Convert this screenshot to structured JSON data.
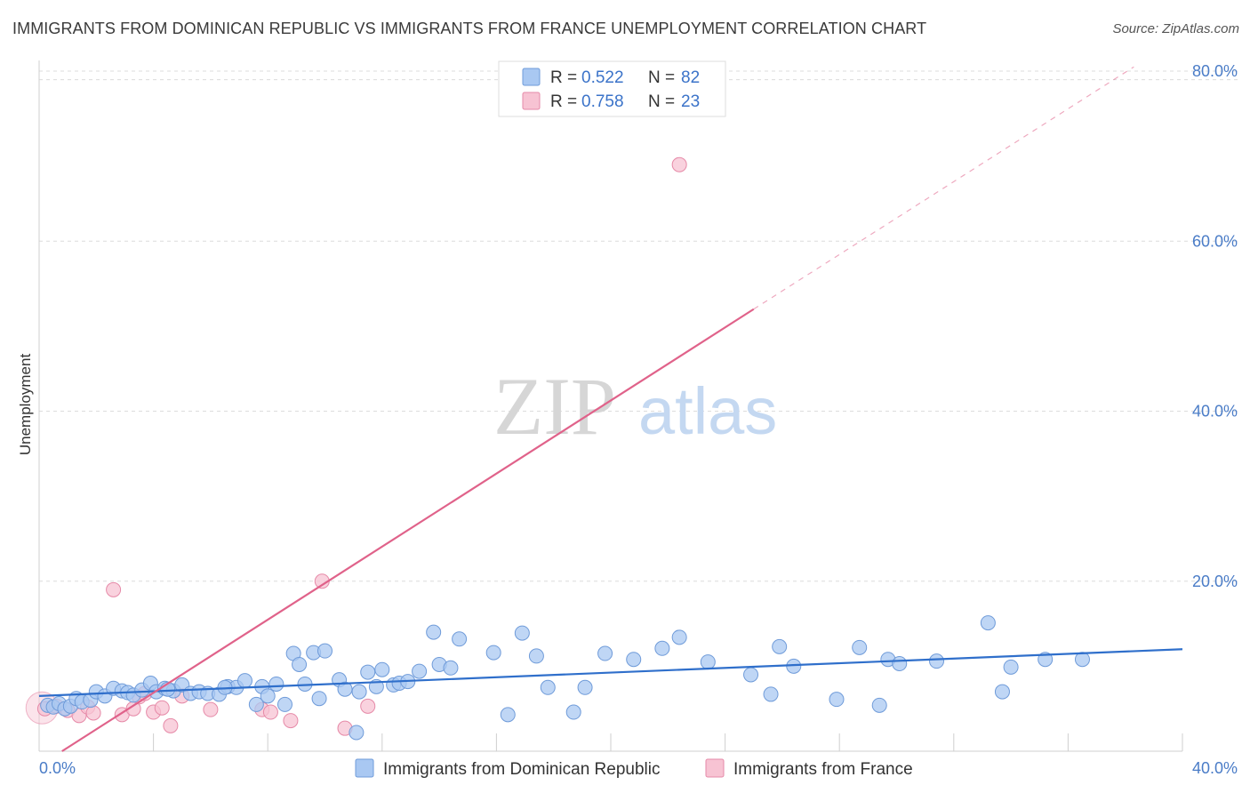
{
  "header": {
    "title": "IMMIGRANTS FROM DOMINICAN REPUBLIC VS IMMIGRANTS FROM FRANCE UNEMPLOYMENT CORRELATION CHART",
    "source": "Source: ZipAtlas.com"
  },
  "watermark": {
    "zip": "ZIP",
    "atlas": "atlas"
  },
  "legend_top": [
    {
      "r_label": "R =",
      "r_value": "0.522",
      "n_label": "N =",
      "n_value": "82",
      "color": "#a9c8f2",
      "stroke": "#6f9bd9"
    },
    {
      "r_label": "R =",
      "r_value": "0.758",
      "n_label": "N =",
      "n_value": "23",
      "color": "#f7c3d3",
      "stroke": "#e68aa8"
    }
  ],
  "chart_data": {
    "type": "scatter",
    "title": "IMMIGRANTS FROM DOMINICAN REPUBLIC VS IMMIGRANTS FROM FRANCE UNEMPLOYMENT CORRELATION CHART",
    "xlabel": "",
    "ylabel": "Unemployment",
    "xlim": [
      0,
      40
    ],
    "ylim": [
      0,
      80
    ],
    "x_ticks": [
      {
        "value": 0,
        "label": "0.0%"
      },
      {
        "value": 40,
        "label": "40.0%"
      }
    ],
    "y_ticks": [
      {
        "value": 20,
        "label": "20.0%"
      },
      {
        "value": 40,
        "label": "40.0%"
      },
      {
        "value": 60,
        "label": "60.0%"
      },
      {
        "value": 80,
        "label": "80.0%"
      }
    ],
    "grid": true,
    "legend_position": "bottom",
    "series": [
      {
        "name": "Immigrants from Dominican Republic",
        "color": "#a9c8f2",
        "stroke": "#6f9bd9",
        "line_color": "#2f6fcb",
        "trend": {
          "x0": 0,
          "y0": 6.5,
          "x1": 40,
          "y1": 12.0
        },
        "points": [
          [
            0.3,
            5.4
          ],
          [
            0.5,
            5.2
          ],
          [
            0.7,
            5.6
          ],
          [
            0.9,
            5.0
          ],
          [
            1.1,
            5.3
          ],
          [
            1.3,
            6.2
          ],
          [
            1.5,
            5.8
          ],
          [
            1.8,
            6.0
          ],
          [
            2.0,
            7.0
          ],
          [
            2.3,
            6.5
          ],
          [
            2.6,
            7.4
          ],
          [
            2.9,
            7.1
          ],
          [
            3.1,
            6.9
          ],
          [
            3.3,
            6.6
          ],
          [
            3.6,
            7.2
          ],
          [
            3.9,
            8.0
          ],
          [
            4.1,
            7.0
          ],
          [
            4.4,
            7.4
          ],
          [
            4.7,
            7.1
          ],
          [
            5.0,
            7.8
          ],
          [
            5.3,
            6.8
          ],
          [
            5.6,
            7.0
          ],
          [
            5.9,
            6.8
          ],
          [
            6.3,
            6.7
          ],
          [
            6.6,
            7.6
          ],
          [
            6.9,
            7.5
          ],
          [
            7.2,
            8.3
          ],
          [
            7.6,
            5.5
          ],
          [
            7.8,
            7.6
          ],
          [
            8.0,
            6.5
          ],
          [
            8.3,
            7.9
          ],
          [
            8.6,
            5.5
          ],
          [
            8.9,
            11.5
          ],
          [
            9.1,
            10.2
          ],
          [
            9.3,
            7.9
          ],
          [
            9.6,
            11.6
          ],
          [
            9.8,
            6.2
          ],
          [
            10.0,
            11.8
          ],
          [
            10.5,
            8.4
          ],
          [
            10.7,
            7.3
          ],
          [
            11.1,
            2.2
          ],
          [
            11.2,
            7.0
          ],
          [
            11.5,
            9.3
          ],
          [
            11.8,
            7.6
          ],
          [
            12.0,
            9.6
          ],
          [
            12.4,
            7.8
          ],
          [
            12.6,
            8.0
          ],
          [
            12.9,
            8.2
          ],
          [
            13.3,
            9.4
          ],
          [
            13.8,
            14.0
          ],
          [
            14.0,
            10.2
          ],
          [
            14.4,
            9.8
          ],
          [
            14.7,
            13.2
          ],
          [
            15.9,
            11.6
          ],
          [
            16.4,
            4.3
          ],
          [
            16.9,
            13.9
          ],
          [
            17.4,
            11.2
          ],
          [
            17.8,
            7.5
          ],
          [
            18.7,
            4.6
          ],
          [
            19.1,
            7.5
          ],
          [
            19.8,
            11.5
          ],
          [
            20.8,
            10.8
          ],
          [
            21.8,
            12.1
          ],
          [
            22.4,
            13.4
          ],
          [
            23.4,
            10.5
          ],
          [
            24.9,
            9.0
          ],
          [
            25.6,
            6.7
          ],
          [
            25.9,
            12.3
          ],
          [
            26.4,
            10.0
          ],
          [
            27.9,
            6.1
          ],
          [
            28.7,
            12.2
          ],
          [
            29.4,
            5.4
          ],
          [
            29.7,
            10.8
          ],
          [
            30.1,
            10.3
          ],
          [
            31.4,
            10.6
          ],
          [
            33.2,
            15.1
          ],
          [
            33.7,
            7.0
          ],
          [
            34.0,
            9.9
          ],
          [
            35.2,
            10.8
          ],
          [
            36.5,
            10.8
          ],
          [
            4.5,
            7.3
          ],
          [
            6.5,
            7.5
          ]
        ]
      },
      {
        "name": "Immigrants from France",
        "color": "#f7c3d3",
        "stroke": "#e68aa8",
        "line_color": "#e0628a",
        "trend": {
          "x0": 0.8,
          "y0": 0.0,
          "x1": 25.0,
          "y1": 52.0
        },
        "trend_extension": {
          "x0": 25.0,
          "y0": 52.0,
          "x1": 38.3,
          "y1": 80.5
        },
        "points": [
          [
            0.2,
            5.0
          ],
          [
            0.6,
            5.3
          ],
          [
            1.0,
            4.8
          ],
          [
            1.4,
            4.2
          ],
          [
            1.7,
            5.2
          ],
          [
            1.9,
            4.5
          ],
          [
            2.6,
            19.0
          ],
          [
            2.9,
            4.3
          ],
          [
            3.3,
            5.0
          ],
          [
            3.5,
            6.4
          ],
          [
            3.7,
            6.8
          ],
          [
            4.0,
            4.6
          ],
          [
            4.3,
            5.1
          ],
          [
            4.6,
            3.0
          ],
          [
            5.0,
            6.5
          ],
          [
            6.0,
            4.9
          ],
          [
            7.8,
            4.9
          ],
          [
            8.1,
            4.6
          ],
          [
            8.8,
            3.6
          ],
          [
            9.9,
            20.0
          ],
          [
            10.7,
            2.7
          ],
          [
            11.5,
            5.3
          ],
          [
            22.4,
            69.0
          ]
        ]
      }
    ]
  }
}
